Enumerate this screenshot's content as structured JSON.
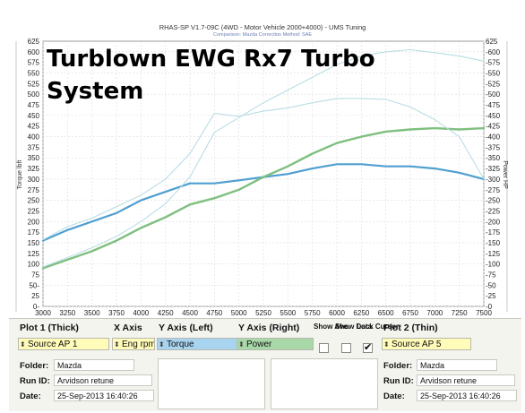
{
  "header": {
    "title": "RHAS-SP V1.7-09C  (4WD - Motor Vehicle 2000+4000) - UMS Tuning",
    "subtitle": "Comparison: Mazda    Correction Method: SAE"
  },
  "overlay": {
    "line1": "Turblown EWG Rx7 Turbo",
    "line2": "System"
  },
  "chart_data": {
    "type": "line",
    "xlabel": "",
    "ylabel_left": "Torque lbft",
    "ylabel_right": "Power HP",
    "xlim": [
      3000,
      7500
    ],
    "ylim": [
      0,
      625
    ],
    "x_ticks": [
      "3000",
      "3250",
      "3500",
      "3750",
      "4000",
      "4250",
      "4500",
      "4750",
      "5000",
      "5250",
      "5500",
      "5750",
      "6000",
      "6250",
      "6500",
      "6750",
      "7000",
      "7250",
      "7500"
    ],
    "y_ticks": [
      "0-",
      "25",
      "50-",
      "75",
      "100",
      "125",
      "150",
      "175",
      "200",
      "225",
      "250",
      "275",
      "300",
      "325",
      "350",
      "375",
      "400",
      "425",
      "450",
      "475",
      "500",
      "525",
      "550",
      "575",
      "600",
      "625"
    ],
    "y_ticks_right": [
      "-0",
      "-25",
      "-50",
      "-75",
      "-100",
      "-125",
      "-150",
      "-175",
      "-200",
      "-225",
      "-250",
      "-275",
      "-300",
      "-325",
      "-350",
      "-375",
      "-400",
      "-425",
      "-450",
      "-475",
      "-500",
      "-525",
      "-550",
      "-575",
      "-600",
      "625"
    ],
    "grid": true,
    "series": [
      {
        "color": "#4f9fd0",
        "width": 2.2,
        "x": [
          3000,
          3250,
          3500,
          3750,
          4000,
          4250,
          4500,
          4750,
          5000,
          5250,
          5500,
          5750,
          6000,
          6250,
          6500,
          6750,
          7000,
          7250,
          7500
        ],
        "y": [
          155,
          180,
          200,
          220,
          250,
          270,
          290,
          290,
          297,
          305,
          312,
          325,
          335,
          335,
          330,
          330,
          325,
          315,
          300
        ]
      },
      {
        "color": "#7fbf7f",
        "width": 2.4,
        "x": [
          3000,
          3250,
          3500,
          3750,
          4000,
          4250,
          4500,
          4750,
          5000,
          5250,
          5500,
          5750,
          6000,
          6250,
          6500,
          6750,
          7000,
          7250,
          7500
        ],
        "y": [
          90,
          110,
          130,
          155,
          185,
          210,
          240,
          255,
          275,
          305,
          330,
          360,
          385,
          400,
          412,
          417,
          420,
          417,
          420
        ]
      },
      {
        "color": "#b9dde6",
        "width": 1.1,
        "x": [
          3000,
          3250,
          3500,
          3750,
          4000,
          4250,
          4500,
          4750,
          5000,
          5250,
          5500,
          5750,
          6000,
          6250,
          6500,
          6750,
          7000,
          7250,
          7500
        ],
        "y": [
          157,
          188,
          208,
          235,
          262,
          300,
          360,
          455,
          448,
          460,
          468,
          480,
          490,
          490,
          488,
          470,
          440,
          400,
          300
        ]
      },
      {
        "color": "#b9dde6",
        "width": 1.1,
        "x": [
          3000,
          3250,
          3500,
          3750,
          4000,
          4250,
          4500,
          4750,
          5000,
          5250,
          5500,
          5750,
          6000,
          6250,
          6500,
          6750,
          7000,
          7250,
          7500
        ],
        "y": [
          93,
          115,
          138,
          165,
          200,
          242,
          305,
          410,
          445,
          480,
          510,
          540,
          570,
          590,
          600,
          605,
          598,
          590,
          578
        ]
      }
    ]
  },
  "panel": {
    "plot1_label": "Plot 1 (Thick)",
    "plot1_value": "Source AP 1",
    "xaxis_label": "X Axis",
    "xaxis_value": "Eng rpm",
    "yleft_label": "Y Axis (Left)",
    "yleft_value": "Torque",
    "yright_label": "Y Axis (Right)",
    "yright_value": "Power",
    "show_ave": "Show Ave.",
    "show_data": "Show Data",
    "lock_cursor": "Lock Cursor",
    "plot2_label": "Plot 2 (Thin)",
    "plot2_value": "Source AP 5",
    "folder_label": "Folder:",
    "runid_label": "Run ID:",
    "date_label": "Date:",
    "left": {
      "folder": "Mazda",
      "runid": "Arvidson retune",
      "date": "25-Sep-2013  16:40:26"
    },
    "right": {
      "folder": "Mazda",
      "runid": "Arvidson retune",
      "date": "25-Sep-2013  16:40:26"
    },
    "lock_cursor_checked": "✔"
  }
}
